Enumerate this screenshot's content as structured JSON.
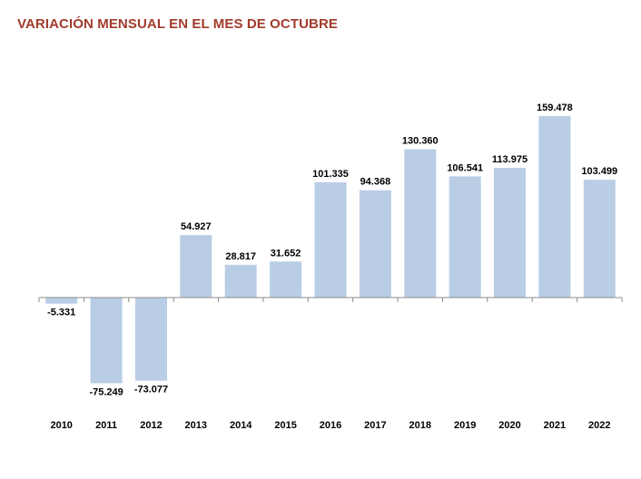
{
  "title": "VARIACIÓN MENSUAL EN EL MES DE OCTUBRE",
  "colors": {
    "title": "#a23b2c",
    "bar": "#b9cde5",
    "axis": "#8c8c8c"
  },
  "chart_data": {
    "type": "bar",
    "title": "VARIACIÓN MENSUAL EN EL MES DE OCTUBRE",
    "xlabel": "",
    "ylabel": "",
    "categories": [
      "2010",
      "2011",
      "2012",
      "2013",
      "2014",
      "2015",
      "2016",
      "2017",
      "2018",
      "2019",
      "2020",
      "2021",
      "2022"
    ],
    "values": [
      -5331,
      -75249,
      -73077,
      54927,
      28817,
      31652,
      101335,
      94368,
      130360,
      106541,
      113975,
      159478,
      103499
    ],
    "value_labels": [
      "-5.331",
      "-75.249",
      "-73.077",
      "54.927",
      "28.817",
      "31.652",
      "101.335",
      "94.368",
      "130.360",
      "106.541",
      "113.975",
      "159.478",
      "103.499"
    ],
    "ylim": [
      -100000,
      200000
    ],
    "grid": false,
    "legend": "none",
    "data_labels": true
  }
}
